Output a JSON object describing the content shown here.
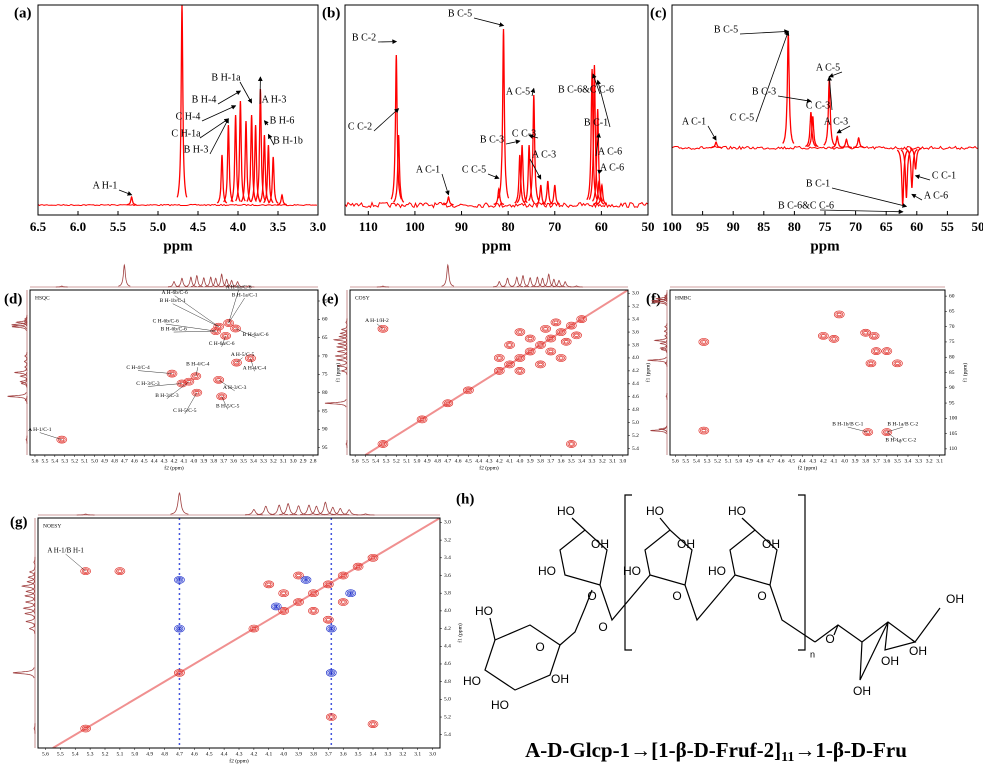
{
  "panels": [
    {
      "label": "(a)",
      "xlabel": "ppm",
      "xlim": [
        6.5,
        3.0
      ],
      "ylim": [
        0,
        100
      ],
      "color": "#ff0000",
      "xticks": [
        6.5,
        {
          "value": 6,
          "label": "6.0"
        },
        5.5,
        {
          "value": 5,
          "label": "5.0"
        },
        4.5,
        {
          "value": 4,
          "label": "4.0"
        },
        3.5,
        {
          "value": 3,
          "label": "3.0"
        }
      ],
      "peaks": [
        {
          "x": 5.33,
          "h": 4
        },
        {
          "x": 4.7,
          "h": 100
        },
        {
          "x": 4.2,
          "h": 25
        },
        {
          "x": 4.12,
          "h": 40
        },
        {
          "x": 4.03,
          "h": 45
        },
        {
          "x": 3.97,
          "h": 52
        },
        {
          "x": 3.9,
          "h": 42
        },
        {
          "x": 3.83,
          "h": 45
        },
        {
          "x": 3.78,
          "h": 40
        },
        {
          "x": 3.72,
          "h": 58
        },
        {
          "x": 3.67,
          "h": 35
        },
        {
          "x": 3.62,
          "h": 30
        },
        {
          "x": 3.56,
          "h": 24
        },
        {
          "x": 3.45,
          "h": 5
        }
      ],
      "annotations": [
        {
          "text": "A H-1",
          "x": 5.33
        },
        {
          "text": "B H-3",
          "x": 4.12
        },
        {
          "text": "C H-1a",
          "x": 4.12
        },
        {
          "text": "C H-4",
          "x": 4.03
        },
        {
          "text": "B H-4",
          "x": 3.97
        },
        {
          "text": "B H-1a",
          "x": 3.83
        },
        {
          "text": "A H-3",
          "x": 3.72
        },
        {
          "text": "B H-6",
          "x": 3.67
        },
        {
          "text": "B H-1b",
          "x": 3.62
        }
      ]
    },
    {
      "label": "(b)",
      "xlabel": "ppm",
      "xlim": [
        115,
        50
      ],
      "ylim": [
        0,
        100
      ],
      "color": "#ff0000",
      "xticks": [
        110,
        100,
        90,
        80,
        70,
        60,
        50
      ],
      "peaks": [
        {
          "x": 104.0,
          "h": 75
        },
        {
          "x": 103.5,
          "h": 35
        },
        {
          "x": 92.8,
          "h": 4
        },
        {
          "x": 82.0,
          "h": 8
        },
        {
          "x": 81.0,
          "h": 88
        },
        {
          "x": 77.5,
          "h": 25
        },
        {
          "x": 77.0,
          "h": 30
        },
        {
          "x": 75.5,
          "h": 30
        },
        {
          "x": 74.5,
          "h": 55
        },
        {
          "x": 73.0,
          "h": 10
        },
        {
          "x": 71.5,
          "h": 12
        },
        {
          "x": 70.0,
          "h": 10
        },
        {
          "x": 62.0,
          "h": 68
        },
        {
          "x": 61.5,
          "h": 70
        },
        {
          "x": 60.8,
          "h": 48
        },
        {
          "x": 60.5,
          "h": 12
        },
        {
          "x": 59.9,
          "h": 10
        }
      ],
      "annotations": [
        {
          "text": "B C-2",
          "x": 104.0
        },
        {
          "text": "C C-2",
          "x": 103.5
        },
        {
          "text": "A C-1",
          "x": 92.8
        },
        {
          "text": "B C-5",
          "x": 81.0
        },
        {
          "text": "C C-5",
          "x": 82.0
        },
        {
          "text": "B C-3",
          "x": 77.5
        },
        {
          "text": "A C-5",
          "x": 74.5
        },
        {
          "text": "C C-3",
          "x": 75.5
        },
        {
          "text": "A C-3",
          "x": 73.0
        },
        {
          "text": "B C-6&C C-6",
          "x": 61.8
        },
        {
          "text": "B C-1",
          "x": 60.8
        },
        {
          "text": "A C-6",
          "x": 60.5
        },
        {
          "text": "A C-6",
          "x": 59.9
        }
      ]
    },
    {
      "label": "(c)",
      "xlabel": "ppm",
      "xlim": [
        100,
        50
      ],
      "ylim": [
        -40,
        100
      ],
      "color": "#ff0000",
      "xticks": [
        100,
        95,
        90,
        85,
        80,
        75,
        70,
        65,
        60,
        55,
        50
      ],
      "peaks": [
        {
          "x": 92.8,
          "h": 4
        },
        {
          "x": 81.0,
          "h": 80
        },
        {
          "x": 77.3,
          "h": 25
        },
        {
          "x": 77.0,
          "h": 22
        },
        {
          "x": 74.3,
          "h": 48
        },
        {
          "x": 73.0,
          "h": 8
        },
        {
          "x": 71.5,
          "h": 6
        },
        {
          "x": 69.5,
          "h": 7
        },
        {
          "x": 62.3,
          "h": -40
        },
        {
          "x": 61.7,
          "h": -35
        },
        {
          "x": 60.8,
          "h": -28
        },
        {
          "x": 60.2,
          "h": -15
        }
      ],
      "annotations": [
        {
          "text": "B C-5",
          "x": 81.0
        },
        {
          "text": "A C-5",
          "x": 74.3
        },
        {
          "text": "B C-3",
          "x": 77.3
        },
        {
          "text": "C C-3",
          "x": 74.3
        },
        {
          "text": "A C-3",
          "x": 73.0
        },
        {
          "text": "A C-1",
          "x": 92.8
        },
        {
          "text": "C C-5",
          "x": 81.0
        },
        {
          "text": "C C-1",
          "x": 60.2
        },
        {
          "text": "A C-6",
          "x": 60.8
        },
        {
          "text": "B C-1",
          "x": 61.7
        },
        {
          "text": "B C-6&C C-6",
          "x": 62.3
        }
      ]
    }
  ],
  "panels2d": [
    {
      "label": "(d)",
      "name": "HSQC",
      "xlabel": "f2 (ppm)",
      "ylabel": "f1 (ppm)",
      "xlim": [
        5.65,
        2.75
      ],
      "ylim": [
        52,
        97
      ],
      "color": "#e0302a",
      "xticks": [
        5.6,
        5.5,
        5.4,
        5.3,
        5.2,
        5.1,
        {
          "value": 5,
          "label": "5.0"
        },
        4.9,
        4.8,
        4.7,
        4.6,
        4.5,
        4.4,
        4.3,
        4.2,
        4.1,
        {
          "value": 4,
          "label": "4.0"
        },
        3.9,
        3.8,
        3.7,
        3.6,
        3.5,
        3.4,
        3.3,
        3.2,
        3.1,
        {
          "value": 3,
          "label": "3.0"
        },
        2.9,
        2.8
      ],
      "yticks": [
        55,
        60,
        65,
        70,
        75,
        80,
        85,
        90,
        95
      ],
      "peaks": [
        {
          "x": 5.33,
          "y": 92.8
        },
        {
          "x": 3.75,
          "y": 62.0
        },
        {
          "x": 3.65,
          "y": 61.0
        },
        {
          "x": 3.58,
          "y": 62.5
        },
        {
          "x": 3.78,
          "y": 63.2
        },
        {
          "x": 3.68,
          "y": 64.5
        },
        {
          "x": 4.22,
          "y": 74.8
        },
        {
          "x": 4.12,
          "y": 77.5
        },
        {
          "x": 3.98,
          "y": 75.5
        },
        {
          "x": 3.57,
          "y": 71.8
        },
        {
          "x": 3.43,
          "y": 70.6
        },
        {
          "x": 3.97,
          "y": 80.0
        },
        {
          "x": 3.72,
          "y": 81.0
        },
        {
          "x": 3.75,
          "y": 76.5
        },
        {
          "x": 4.05,
          "y": 77.0
        }
      ],
      "annotations": [
        {
          "text": "A H-1/C-1",
          "x": 5.33,
          "y": 92.8
        },
        {
          "text": "A H-6b/C-6",
          "x": 3.75,
          "y": 62.0
        },
        {
          "text": "B H-1b/C-1",
          "x": 3.75,
          "y": 62.0
        },
        {
          "text": "A H-6a/C-6",
          "x": 3.65,
          "y": 61.0
        },
        {
          "text": "B H-1a/C-1",
          "x": 3.65,
          "y": 61.0
        },
        {
          "text": "C H-6b/C-6",
          "x": 3.78,
          "y": 63.2
        },
        {
          "text": "B H-6b/C-6",
          "x": 3.78,
          "y": 63.2
        },
        {
          "text": "C H-6a/C-6",
          "x": 3.68,
          "y": 64.5
        },
        {
          "text": "B H-6a/C-6",
          "x": 3.58,
          "y": 62.5
        },
        {
          "text": "C H-4/C-4",
          "x": 4.22,
          "y": 74.8
        },
        {
          "text": "B H-4/C-4",
          "x": 3.98,
          "y": 75.5
        },
        {
          "text": "A H-5/C-5",
          "x": 3.57,
          "y": 71.8
        },
        {
          "text": "C H-3/C-3",
          "x": 4.12,
          "y": 77.5
        },
        {
          "text": "A H-4/C-4",
          "x": 3.43,
          "y": 70.6
        },
        {
          "text": "B H-3/C-3",
          "x": 4.05,
          "y": 77.0
        },
        {
          "text": "B H-5/C-5",
          "x": 3.72,
          "y": 81.0
        },
        {
          "text": "C H-5/C-5",
          "x": 3.97,
          "y": 80.0
        },
        {
          "text": "A H-3/C-3",
          "x": 3.75,
          "y": 76.5
        }
      ]
    },
    {
      "label": "(e)",
      "name": "COSY",
      "xlabel": "f2 (ppm)",
      "ylabel": "f1 (ppm)",
      "xlim": [
        5.65,
        2.95
      ],
      "ylim": [
        2.95,
        5.5
      ],
      "color": "#e0302a",
      "xticks": [
        5.6,
        5.5,
        5.4,
        5.3,
        5.2,
        5.1,
        {
          "value": 5,
          "label": "5.0"
        },
        4.9,
        4.8,
        4.7,
        4.6,
        4.5,
        4.4,
        4.3,
        4.2,
        4.1,
        {
          "value": 4,
          "label": "4.0"
        },
        3.9,
        3.8,
        3.7,
        3.6,
        3.5,
        3.4,
        3.3,
        3.2,
        3.1,
        {
          "value": 3,
          "label": "3.0"
        }
      ],
      "yticks": [
        {
          "value": 3,
          "label": "3.0"
        },
        3.2,
        3.4,
        3.6,
        3.8,
        {
          "value": 4,
          "label": "4.0"
        },
        4.2,
        4.4,
        4.6,
        4.8,
        {
          "value": 5,
          "label": "5.0"
        },
        5.2,
        5.4
      ],
      "peaks": [
        {
          "x": 5.33,
          "y": 3.55
        },
        {
          "x": 3.5,
          "y": 5.33
        },
        {
          "x": 5.33,
          "y": 5.33
        },
        {
          "x": 4.7,
          "y": 4.7
        },
        {
          "x": 4.2,
          "y": 4.2
        },
        {
          "x": 4.1,
          "y": 4.1
        },
        {
          "x": 4.0,
          "y": 4.0
        },
        {
          "x": 3.9,
          "y": 3.9
        },
        {
          "x": 3.8,
          "y": 3.8
        },
        {
          "x": 3.7,
          "y": 3.7
        },
        {
          "x": 3.6,
          "y": 3.6
        },
        {
          "x": 3.5,
          "y": 3.5
        },
        {
          "x": 3.4,
          "y": 3.4
        },
        {
          "x": 4.2,
          "y": 4.0
        },
        {
          "x": 4.0,
          "y": 4.2
        },
        {
          "x": 4.1,
          "y": 3.8
        },
        {
          "x": 3.8,
          "y": 4.1
        },
        {
          "x": 3.9,
          "y": 3.7
        },
        {
          "x": 3.7,
          "y": 3.9
        },
        {
          "x": 3.75,
          "y": 3.55
        },
        {
          "x": 3.55,
          "y": 3.75
        },
        {
          "x": 4.0,
          "y": 3.6
        },
        {
          "x": 3.6,
          "y": 4.0
        },
        {
          "x": 3.45,
          "y": 3.65
        },
        {
          "x": 3.65,
          "y": 3.45
        },
        {
          "x": 4.95,
          "y": 4.95
        },
        {
          "x": 4.5,
          "y": 4.5
        }
      ],
      "annotations": [
        {
          "text": "A H-1/H-2",
          "x": 5.33,
          "y": 3.55
        }
      ]
    },
    {
      "label": "(f)",
      "name": "HMBC",
      "xlabel": "f2 (ppm)",
      "ylabel": "f1 (ppm)",
      "xlim": [
        5.65,
        3.05
      ],
      "ylim": [
        58,
        112
      ],
      "color": "#e0302a",
      "xticks": [
        5.6,
        5.5,
        5.4,
        5.3,
        5.2,
        5.1,
        {
          "value": 5,
          "label": "5.0"
        },
        4.9,
        4.8,
        4.7,
        4.6,
        4.5,
        4.4,
        4.3,
        4.2,
        4.1,
        {
          "value": 4,
          "label": "4.0"
        },
        3.9,
        3.8,
        3.7,
        3.6,
        3.5,
        3.4,
        3.3,
        3.2,
        3.1
      ],
      "yticks": [
        60,
        65,
        70,
        75,
        80,
        85,
        90,
        95,
        100,
        105,
        110
      ],
      "peaks": [
        {
          "x": 4.05,
          "y": 66
        },
        {
          "x": 3.8,
          "y": 72
        },
        {
          "x": 3.72,
          "y": 73
        },
        {
          "x": 3.7,
          "y": 78
        },
        {
          "x": 3.6,
          "y": 78
        },
        {
          "x": 3.75,
          "y": 82
        },
        {
          "x": 3.5,
          "y": 82
        },
        {
          "x": 5.33,
          "y": 75
        },
        {
          "x": 5.33,
          "y": 104
        },
        {
          "x": 3.78,
          "y": 104.5
        },
        {
          "x": 3.6,
          "y": 104.5
        },
        {
          "x": 4.2,
          "y": 73
        },
        {
          "x": 4.1,
          "y": 74
        }
      ],
      "annotations": [
        {
          "text": "B H-1b/B C-1",
          "x": 3.78,
          "y": 104.5
        },
        {
          "text": "B H-1a/B C-2",
          "x": 3.6,
          "y": 104.5
        },
        {
          "text": "B H-1a/C C-2",
          "x": 3.6,
          "y": 104.5
        }
      ]
    },
    {
      "label": "(g)",
      "name": "NOESY",
      "xlabel": "f2 (ppm)",
      "ylabel": "f1 (ppm)",
      "xlim": [
        5.65,
        2.95
      ],
      "ylim": [
        2.95,
        5.55
      ],
      "color": "#e0302a",
      "xticks": [
        5.6,
        5.5,
        5.4,
        5.3,
        5.2,
        5.1,
        {
          "value": 5,
          "label": "5.0"
        },
        4.9,
        4.8,
        4.7,
        4.6,
        4.5,
        4.4,
        4.3,
        4.2,
        4.1,
        {
          "value": 4,
          "label": "4.0"
        },
        3.9,
        3.8,
        3.7,
        3.6,
        3.5,
        3.4,
        3.3,
        3.2,
        3.1,
        {
          "value": 3,
          "label": "3.0"
        }
      ],
      "yticks": [
        {
          "value": 3,
          "label": "3.0"
        },
        3.2,
        3.4,
        3.6,
        3.8,
        {
          "value": 4,
          "label": "4.0"
        },
        4.2,
        4.4,
        4.6,
        4.8,
        {
          "value": 5,
          "label": "5.0"
        },
        5.2,
        5.4
      ],
      "peaks": [
        {
          "x": 5.33,
          "y": 3.55
        },
        {
          "x": 5.1,
          "y": 3.55
        },
        {
          "x": 5.33,
          "y": 5.33
        },
        {
          "x": 4.7,
          "y": 4.7
        },
        {
          "x": 4.2,
          "y": 4.2
        },
        {
          "x": 4.0,
          "y": 4.0
        },
        {
          "x": 3.9,
          "y": 3.9
        },
        {
          "x": 3.8,
          "y": 3.8
        },
        {
          "x": 3.7,
          "y": 3.7
        },
        {
          "x": 3.6,
          "y": 3.6
        },
        {
          "x": 3.5,
          "y": 3.5
        },
        {
          "x": 3.4,
          "y": 3.4
        },
        {
          "x": 4.1,
          "y": 3.7
        },
        {
          "x": 3.7,
          "y": 4.1
        },
        {
          "x": 3.9,
          "y": 3.6
        },
        {
          "x": 3.6,
          "y": 3.9
        },
        {
          "x": 4.0,
          "y": 3.8
        },
        {
          "x": 3.8,
          "y": 4.0
        },
        {
          "x": 3.4,
          "y": 5.28
        },
        {
          "x": 3.68,
          "y": 5.2
        },
        {
          "x": 4.7,
          "y": 3.65,
          "color": "#2233cc"
        },
        {
          "x": 3.68,
          "y": 4.2,
          "color": "#2233cc"
        },
        {
          "x": 4.7,
          "y": 4.2,
          "color": "#2233cc"
        },
        {
          "x": 3.68,
          "y": 4.7,
          "color": "#2233cc"
        },
        {
          "x": 3.85,
          "y": 3.65,
          "color": "#2233cc"
        },
        {
          "x": 4.05,
          "y": 3.95,
          "color": "#2233cc"
        },
        {
          "x": 3.55,
          "y": 3.8,
          "color": "#2233cc"
        }
      ],
      "annotations": [
        {
          "text": "A H-1/B H-1",
          "x": 5.33,
          "y": 3.55
        }
      ]
    }
  ],
  "structure": {
    "label": "(h)",
    "atoms": [
      "HO",
      "HO",
      "HO",
      "HO",
      "OH",
      "HO",
      "OH",
      "HO",
      "OH",
      "O",
      "O",
      "O",
      "O",
      "HO",
      "O",
      "OH",
      "HO",
      "HO",
      "O",
      "OH",
      "OH",
      "OH",
      "OH"
    ],
    "repeat": "n",
    "caption": {
      "before": "A-D-Glcp-1→[1-β-D-Fruf-2]",
      "sub": "11",
      "after": "→1-β-D-Fru"
    }
  }
}
